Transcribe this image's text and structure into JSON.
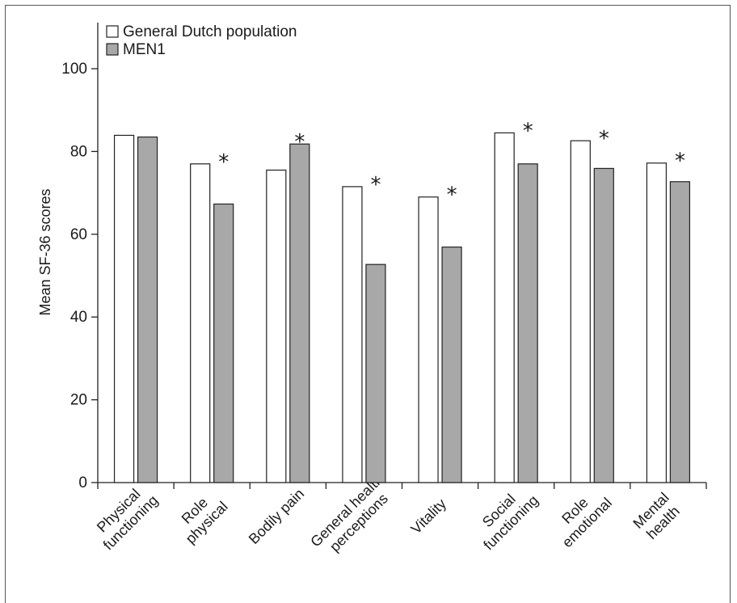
{
  "chart_data": {
    "type": "bar",
    "categories": [
      [
        "Physical",
        "functioning"
      ],
      [
        "Role",
        "physical"
      ],
      [
        "Bodily pain"
      ],
      [
        "General health",
        "perceptions"
      ],
      [
        "Vitality"
      ],
      [
        "Social",
        "functioning"
      ],
      [
        "Role",
        "emotional"
      ],
      [
        "Mental",
        "health"
      ]
    ],
    "series": [
      {
        "name": "General Dutch population",
        "values": [
          83.9,
          77.0,
          75.5,
          71.5,
          69.0,
          84.5,
          82.6,
          77.2
        ],
        "fill": "#ffffff"
      },
      {
        "name": "MEN1",
        "values": [
          83.5,
          67.3,
          81.8,
          52.7,
          56.9,
          77.0,
          75.9,
          72.7
        ],
        "fill": "#a8a8a8"
      }
    ],
    "significant": [
      false,
      true,
      true,
      true,
      true,
      true,
      true,
      true
    ],
    "significance_marker": "*",
    "ylabel": "Mean SF-36 scores",
    "xlabel": "",
    "title": "",
    "ylim": [
      0,
      100
    ],
    "yticks": [
      0,
      20,
      40,
      60,
      80,
      100
    ],
    "legend_position": "top-left",
    "grid": false
  }
}
